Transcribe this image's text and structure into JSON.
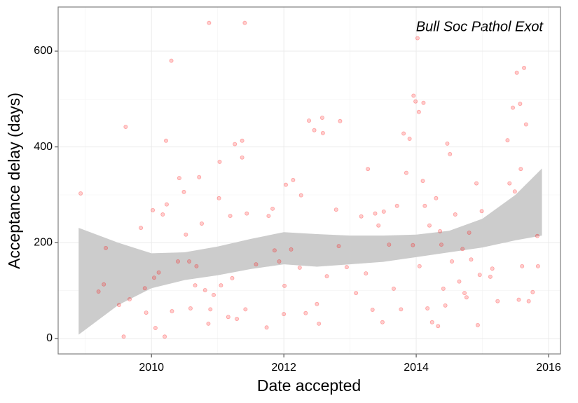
{
  "chart_data": {
    "type": "scatter",
    "annotation": "Bull Soc Pathol Exot",
    "x_label": "Date accepted",
    "y_label": "Acceptance delay (days)",
    "xlim": [
      2008.59,
      2016.18
    ],
    "ylim": [
      -32.2,
      692.2
    ],
    "xticks": [
      2010,
      2012,
      2014,
      2016
    ],
    "yticks": [
      0,
      200,
      400,
      600
    ],
    "minor_xticks": [
      2009,
      2011,
      2013,
      2015
    ],
    "minor_yticks": [
      100,
      300,
      500
    ],
    "grid": true,
    "color": "#ff0000",
    "point_alpha": 0.2,
    "band_color": "#cccccc",
    "x": [
      2008.93,
      2009.2,
      2009.28,
      2009.31,
      2009.51,
      2009.58,
      2009.61,
      2009.67,
      2009.84,
      2009.9,
      2009.92,
      2010.02,
      2010.04,
      2010.06,
      2010.11,
      2010.17,
      2010.2,
      2010.22,
      2010.23,
      2010.3,
      2010.31,
      2010.4,
      2010.42,
      2010.49,
      2010.52,
      2010.57,
      2010.59,
      2010.66,
      2010.68,
      2010.72,
      2010.76,
      2010.81,
      2010.86,
      2010.89,
      2010.87,
      2010.94,
      2011.02,
      2011.03,
      2011.05,
      2011.16,
      2011.19,
      2011.22,
      2011.26,
      2011.29,
      2011.37,
      2011.37,
      2011.42,
      2011.44,
      2011.41,
      2011.58,
      2011.74,
      2011.77,
      2011.83,
      2011.86,
      2011.93,
      2012,
      2012.01,
      2012.03,
      2012.11,
      2012.14,
      2012.24,
      2012.26,
      2012.33,
      2012.38,
      2012.46,
      2012.5,
      2012.53,
      2012.58,
      2012.59,
      2012.65,
      2012.79,
      2012.83,
      2012.85,
      2012.95,
      2013.09,
      2013.17,
      2013.24,
      2013.27,
      2013.34,
      2013.38,
      2013.43,
      2013.49,
      2013.51,
      2013.59,
      2013.66,
      2013.71,
      2013.77,
      2013.81,
      2013.85,
      2013.9,
      2013.95,
      2013.96,
      2013.99,
      2014.02,
      2014.04,
      2014.05,
      2014.1,
      2014.11,
      2014.13,
      2014.17,
      2014.2,
      2014.24,
      2014.3,
      2014.33,
      2014.36,
      2014.38,
      2014.41,
      2014.44,
      2014.47,
      2014.51,
      2014.54,
      2014.59,
      2014.65,
      2014.7,
      2014.73,
      2014.76,
      2014.8,
      2014.83,
      2014.91,
      2014.93,
      2014.96,
      2014.99,
      2015.12,
      2015.15,
      2015.23,
      2015.38,
      2015.41,
      2015.46,
      2015.49,
      2015.52,
      2015.55,
      2015.57,
      2015.58,
      2015.6,
      2015.63,
      2015.66,
      2015.7,
      2015.76,
      2015.83,
      2015.84
    ],
    "values": [
      303,
      98,
      113,
      189,
      70,
      4,
      442,
      82,
      231,
      105,
      54,
      268,
      127,
      22,
      138,
      259,
      4,
      413,
      280,
      580,
      57,
      161,
      335,
      306,
      217,
      161,
      63,
      111,
      151,
      337,
      240,
      101,
      31,
      61,
      659,
      91,
      293,
      369,
      111,
      45,
      256,
      126,
      406,
      41,
      413,
      378,
      61,
      261,
      659,
      155,
      23,
      256,
      271,
      184,
      161,
      51,
      110,
      321,
      186,
      331,
      148,
      299,
      53,
      455,
      435,
      72,
      31,
      461,
      429,
      130,
      269,
      193,
      454,
      149,
      95,
      255,
      136,
      354,
      60,
      261,
      236,
      34,
      265,
      196,
      104,
      277,
      61,
      428,
      346,
      417,
      195,
      507,
      495,
      627,
      473,
      151,
      329,
      492,
      277,
      63,
      236,
      34,
      293,
      26,
      224,
      196,
      104,
      69,
      407,
      385,
      161,
      259,
      119,
      187,
      95,
      86,
      221,
      165,
      324,
      28,
      133,
      266,
      129,
      146,
      78,
      414,
      324,
      482,
      307,
      555,
      81,
      490,
      354,
      151,
      565,
      447,
      78,
      97,
      214,
      151
    ],
    "band": {
      "x": [
        2008.9,
        2009.5,
        2010,
        2010.5,
        2011,
        2011.5,
        2012,
        2012.5,
        2013,
        2013.5,
        2014,
        2014.5,
        2015,
        2015.5,
        2015.9
      ],
      "upper": [
        231,
        200,
        178,
        180,
        192,
        208,
        222,
        218,
        215,
        215,
        217,
        225,
        250,
        300,
        355
      ],
      "lower": [
        8,
        70,
        105,
        122,
        132,
        145,
        155,
        150,
        155,
        160,
        170,
        180,
        190,
        205,
        215
      ]
    }
  }
}
